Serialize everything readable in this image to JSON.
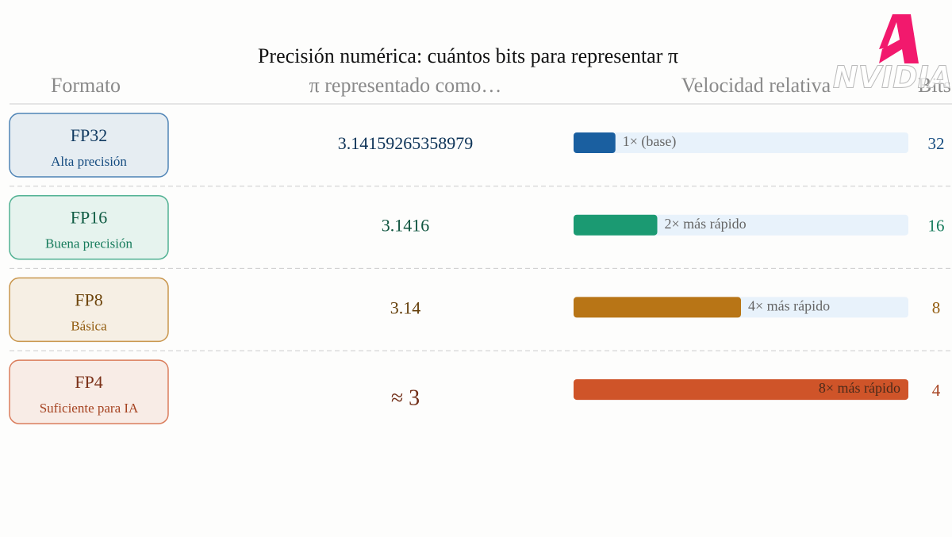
{
  "title": "Precisión numérica: cuántos bits para representar π",
  "watermark": "NVIDIA",
  "headers": [
    "Formato",
    "π representado como…",
    "Velocidad relativa",
    "Bits"
  ],
  "rows": [
    {
      "format": "FP32",
      "description": "Alta precisión",
      "pi": "3.14159265358979",
      "speed": 1,
      "speed_label": "1× (base)",
      "bits": 32,
      "color": "#1a5fa0"
    },
    {
      "format": "FP16",
      "description": "Buena precisión",
      "pi": "3.1416",
      "speed": 2,
      "speed_label": "2× más rápido",
      "bits": 16,
      "color": "#1b9a72"
    },
    {
      "format": "FP8",
      "description": "Básica",
      "pi": "3.14",
      "speed": 4,
      "speed_label": "4× más rápido",
      "bits": 8,
      "color": "#b87516"
    },
    {
      "format": "FP4",
      "description": "Suficiente para IA",
      "pi": "≈ 3",
      "speed": 8,
      "speed_label": "8× más rápido",
      "bits": 4,
      "color": "#cf5429"
    }
  ]
}
